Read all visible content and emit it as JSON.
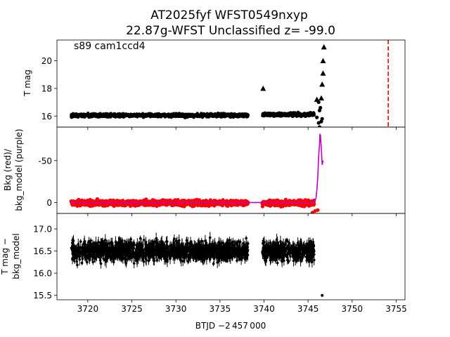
{
  "chart_data": {
    "title_line1": "AT2025fyf  WFST0549nxyp",
    "title_line2": "22.87g-WFST Unclassified z= -99.0",
    "xlabel": "BTJD −2 457 000",
    "xlim": [
      3716.5,
      3756
    ],
    "x_ticks": [
      3720,
      3725,
      3730,
      3735,
      3740,
      3745,
      3750,
      3755
    ],
    "colors": {
      "points": "#000000",
      "bkg": "#ff0000",
      "model": "#bf00bf",
      "marker_line": "#ff0000"
    },
    "panels": [
      {
        "type": "scatter",
        "ylabel": "T mag",
        "ylim": [
          21.5,
          15.2
        ],
        "y_ticks": [
          16,
          18,
          20
        ],
        "annotation": "s89 cam1ccd4",
        "segments": [
          {
            "x_start": 3718.1,
            "x_end": 3738.2,
            "center": 16.05,
            "spread": 0.15
          },
          {
            "x_start": 3739.8,
            "x_end": 3745.7,
            "center": 16.1,
            "spread": 0.15
          }
        ],
        "peak_points": [
          [
            3746.0,
            15.9
          ],
          [
            3746.2,
            15.5
          ],
          [
            3746.3,
            15.2
          ],
          [
            3746.5,
            15.6
          ],
          [
            3746.6,
            15.8
          ],
          [
            3746.3,
            16.4
          ],
          [
            3746.4,
            16.6
          ],
          [
            3746.2,
            17.0
          ]
        ],
        "upper_limits": [
          [
            3739.9,
            18.0
          ],
          [
            3746.0,
            17.2
          ],
          [
            3746.5,
            17.3
          ],
          [
            3746.6,
            18.3
          ],
          [
            3746.7,
            19.1
          ],
          [
            3746.7,
            20.0
          ],
          [
            3746.8,
            21.0
          ]
        ],
        "marker_line_x": 3754.1
      },
      {
        "type": "line",
        "ylabel": "Bkg (red)/\nbkg_model (purple)",
        "ylim": [
          -90,
          13
        ],
        "y_ticks": [
          0,
          -50
        ],
        "segments": [
          {
            "x_start": 3718.1,
            "x_end": 3738.2,
            "center": 0.5,
            "spread": 4
          },
          {
            "x_start": 3739.8,
            "x_end": 3745.7,
            "center": 0.5,
            "spread": 4
          }
        ],
        "outlier_points": [
          [
            3745.5,
            12
          ],
          [
            3745.8,
            10
          ],
          [
            3746.1,
            9
          ]
        ],
        "model_x": [
          3718.1,
          3738.0,
          3740.0,
          3745.6,
          3745.9,
          3746.0,
          3746.1,
          3746.2,
          3746.3,
          3746.35,
          3746.4,
          3746.5,
          3746.6,
          3746.7
        ],
        "model_y": [
          0,
          0,
          0,
          0,
          -5,
          -15,
          -30,
          -55,
          -70,
          -82,
          -80,
          -65,
          -45,
          -50
        ]
      },
      {
        "type": "errorbar",
        "ylabel": "T mag −\nbkg_model",
        "ylim": [
          17.35,
          15.4
        ],
        "y_ticks": [
          15.5,
          16.0,
          16.5,
          17.0
        ],
        "segments": [
          {
            "x_start": 3718.1,
            "x_end": 3738.2,
            "center": 16.5,
            "spread": 0.28
          },
          {
            "x_start": 3739.8,
            "x_end": 3745.7,
            "center": 16.5,
            "spread": 0.28
          }
        ],
        "outlier_points": [
          [
            3746.6,
            15.5
          ]
        ]
      }
    ]
  }
}
